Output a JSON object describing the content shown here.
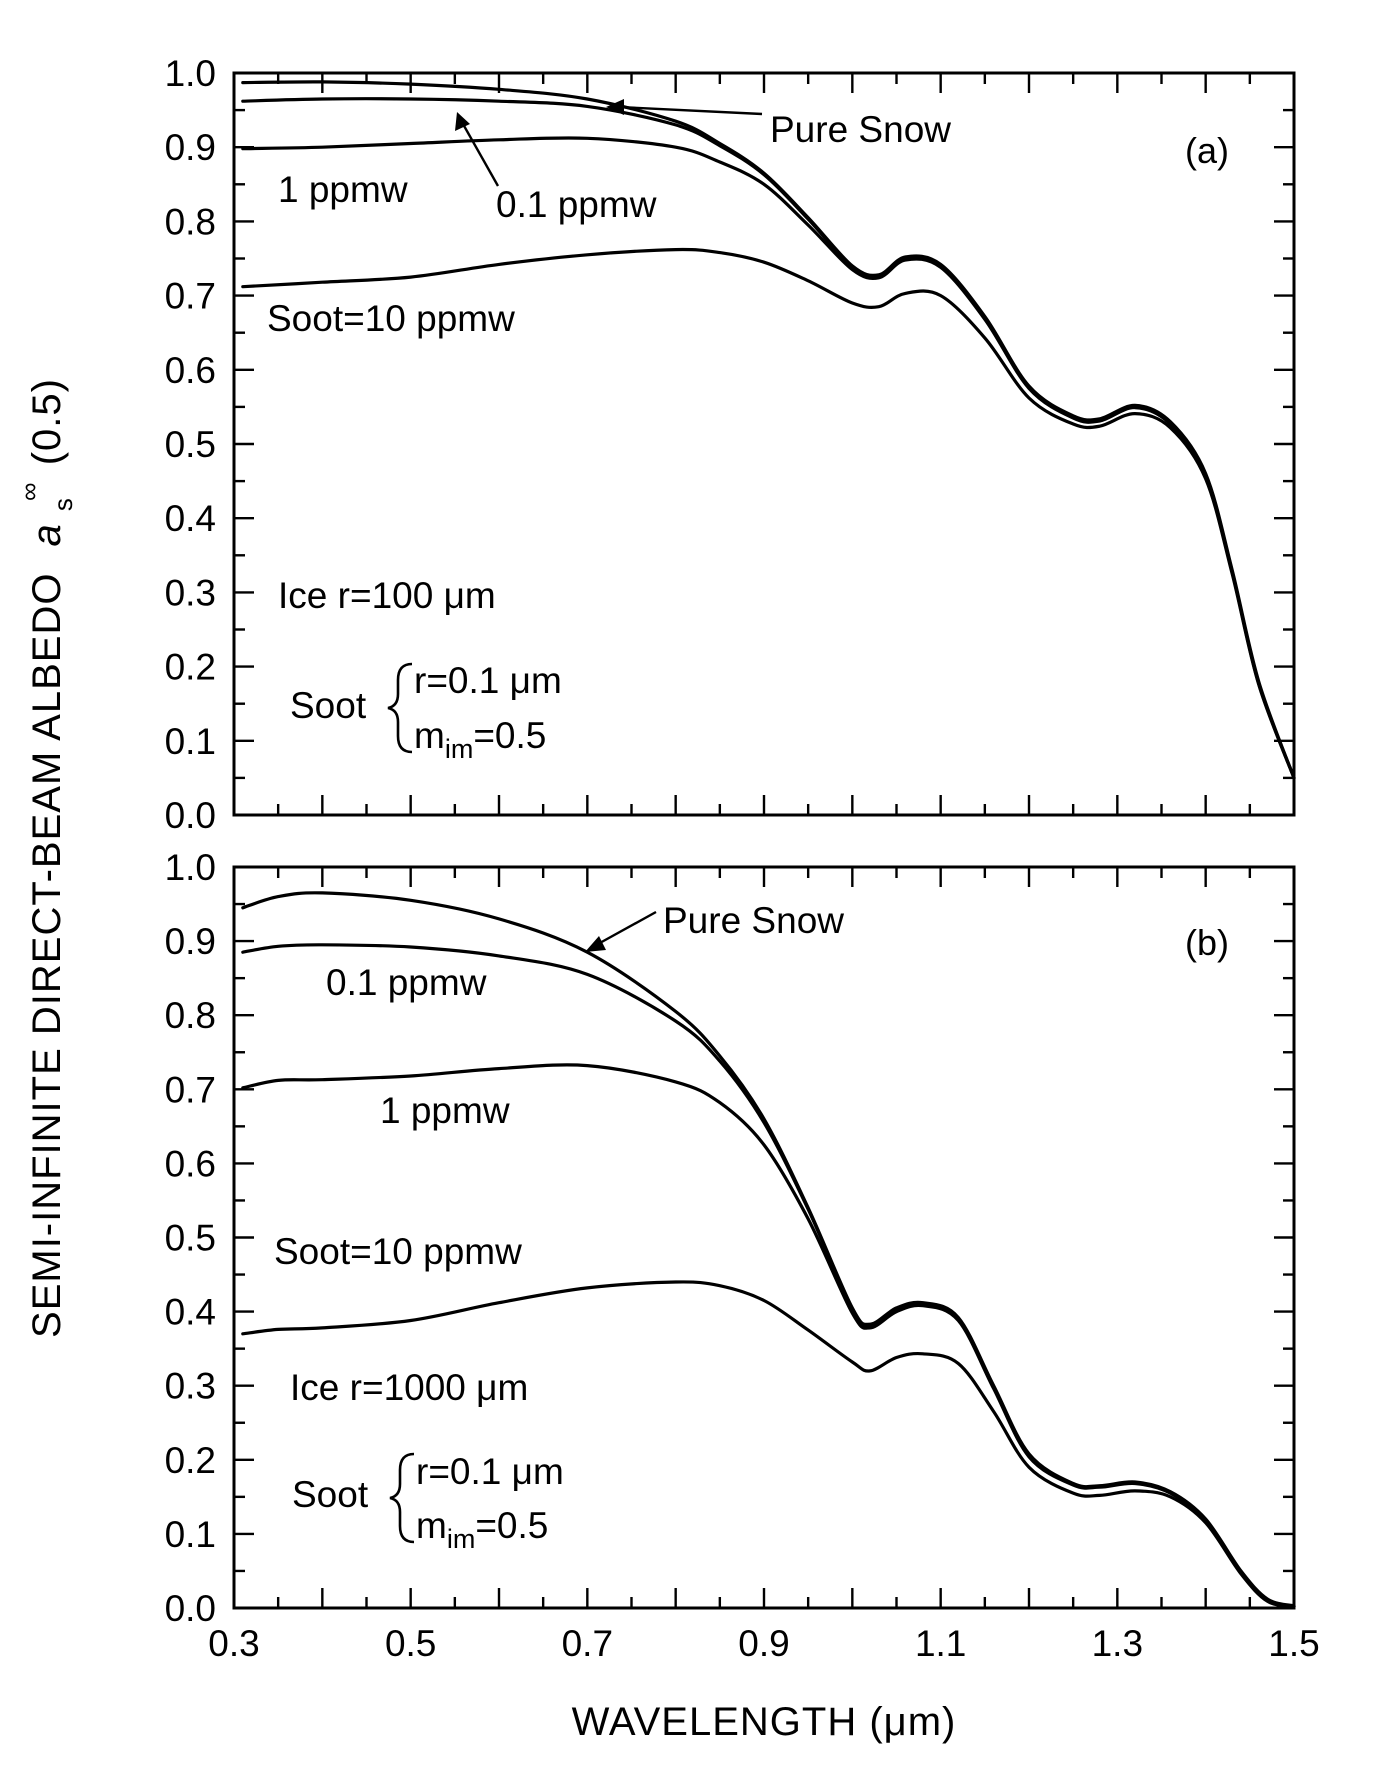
{
  "chart_data": [
    {
      "type": "line",
      "panel": "(a)",
      "ylabel": "SEMI-INFINITE DIRECT-BEAM ALBEDO",
      "ylabel_symbol": "a",
      "ylabel_sub": "s",
      "ylabel_sup": "∞",
      "ylabel_arg": "(0.5)",
      "xlim": [
        0.3,
        1.5
      ],
      "ylim": [
        0.0,
        1.0
      ],
      "yticks": [
        "0.0",
        "0.1",
        "0.2",
        "0.3",
        "0.4",
        "0.5",
        "0.6",
        "0.7",
        "0.8",
        "0.9",
        "1.0"
      ],
      "series": [
        {
          "name": "Pure Snow",
          "color": "#000000",
          "x": [
            0.31,
            0.4,
            0.5,
            0.6,
            0.7,
            0.8,
            0.85,
            0.9,
            0.95,
            1.0,
            1.03,
            1.06,
            1.1,
            1.15,
            1.2,
            1.25,
            1.28,
            1.32,
            1.36,
            1.4,
            1.43,
            1.46,
            1.5
          ],
          "y": [
            0.987,
            0.988,
            0.985,
            0.978,
            0.965,
            0.935,
            0.905,
            0.865,
            0.805,
            0.74,
            0.728,
            0.752,
            0.742,
            0.672,
            0.578,
            0.538,
            0.534,
            0.552,
            0.53,
            0.46,
            0.33,
            0.18,
            0.05
          ]
        },
        {
          "name": "0.1 ppmw",
          "color": "#000000",
          "x": [
            0.31,
            0.4,
            0.5,
            0.6,
            0.7,
            0.8,
            0.85,
            0.9,
            0.95,
            1.0,
            1.03,
            1.06,
            1.1,
            1.15,
            1.2,
            1.25,
            1.28,
            1.32,
            1.36,
            1.4,
            1.43,
            1.46,
            1.5
          ],
          "y": [
            0.962,
            0.965,
            0.965,
            0.962,
            0.955,
            0.93,
            0.902,
            0.863,
            0.803,
            0.738,
            0.726,
            0.75,
            0.74,
            0.67,
            0.576,
            0.536,
            0.532,
            0.55,
            0.528,
            0.458,
            0.328,
            0.178,
            0.05
          ]
        },
        {
          "name": "1 ppmw",
          "color": "#000000",
          "x": [
            0.31,
            0.4,
            0.5,
            0.6,
            0.7,
            0.8,
            0.85,
            0.9,
            0.95,
            1.0,
            1.03,
            1.06,
            1.1,
            1.15,
            1.2,
            1.25,
            1.28,
            1.32,
            1.36,
            1.4,
            1.43,
            1.46,
            1.5
          ],
          "y": [
            0.898,
            0.9,
            0.905,
            0.91,
            0.912,
            0.9,
            0.88,
            0.85,
            0.795,
            0.735,
            0.724,
            0.748,
            0.738,
            0.668,
            0.575,
            0.535,
            0.531,
            0.549,
            0.527,
            0.457,
            0.327,
            0.177,
            0.05
          ]
        },
        {
          "name": "Soot=10 ppmw",
          "color": "#000000",
          "x": [
            0.31,
            0.4,
            0.5,
            0.6,
            0.7,
            0.8,
            0.85,
            0.9,
            0.95,
            1.0,
            1.03,
            1.06,
            1.1,
            1.15,
            1.2,
            1.25,
            1.28,
            1.32,
            1.36,
            1.4,
            1.43,
            1.46,
            1.5
          ],
          "y": [
            0.712,
            0.718,
            0.725,
            0.742,
            0.755,
            0.762,
            0.758,
            0.745,
            0.72,
            0.69,
            0.685,
            0.703,
            0.7,
            0.643,
            0.562,
            0.527,
            0.524,
            0.541,
            0.522,
            0.453,
            0.325,
            0.176,
            0.05
          ]
        }
      ],
      "annotations": {
        "pure_snow": "Pure Snow",
        "ppmw_01": "0.1 ppmw",
        "ppmw_1": "1 ppmw",
        "soot_10": "Soot=10 ppmw",
        "ice": "Ice r=100 μm",
        "soot_word": "Soot",
        "soot_r": "r=0.1 μm",
        "soot_m_base": "m",
        "soot_m_sub": "im",
        "soot_m_val": "=0.5"
      }
    },
    {
      "type": "line",
      "panel": "(b)",
      "xlabel": "WAVELENGTH (μm)",
      "xlim": [
        0.3,
        1.5
      ],
      "ylim": [
        0.0,
        1.0
      ],
      "xticks": [
        "0.3",
        "0.5",
        "0.7",
        "0.9",
        "1.1",
        "1.3",
        "1.5"
      ],
      "yticks": [
        "0.0",
        "0.1",
        "0.2",
        "0.3",
        "0.4",
        "0.5",
        "0.6",
        "0.7",
        "0.8",
        "0.9",
        "1.0"
      ],
      "series": [
        {
          "name": "Pure Snow",
          "color": "#000000",
          "x": [
            0.31,
            0.35,
            0.4,
            0.5,
            0.6,
            0.7,
            0.8,
            0.85,
            0.9,
            0.95,
            1.0,
            1.02,
            1.05,
            1.08,
            1.12,
            1.16,
            1.2,
            1.25,
            1.28,
            1.32,
            1.36,
            1.4,
            1.44,
            1.47,
            1.5
          ],
          "y": [
            0.945,
            0.96,
            0.965,
            0.955,
            0.93,
            0.885,
            0.805,
            0.745,
            0.66,
            0.54,
            0.405,
            0.383,
            0.405,
            0.412,
            0.392,
            0.3,
            0.208,
            0.168,
            0.165,
            0.17,
            0.157,
            0.12,
            0.05,
            0.012,
            0.003
          ]
        },
        {
          "name": "0.1 ppmw",
          "color": "#000000",
          "x": [
            0.31,
            0.35,
            0.4,
            0.5,
            0.6,
            0.7,
            0.8,
            0.85,
            0.9,
            0.95,
            1.0,
            1.02,
            1.05,
            1.08,
            1.12,
            1.16,
            1.2,
            1.25,
            1.28,
            1.32,
            1.36,
            1.4,
            1.44,
            1.47,
            1.5
          ],
          "y": [
            0.885,
            0.893,
            0.895,
            0.892,
            0.88,
            0.855,
            0.792,
            0.738,
            0.655,
            0.538,
            0.403,
            0.381,
            0.403,
            0.41,
            0.39,
            0.298,
            0.206,
            0.167,
            0.164,
            0.169,
            0.156,
            0.119,
            0.049,
            0.011,
            0.002
          ]
        },
        {
          "name": "1 ppmw",
          "color": "#000000",
          "x": [
            0.31,
            0.35,
            0.4,
            0.5,
            0.6,
            0.7,
            0.8,
            0.85,
            0.9,
            0.95,
            1.0,
            1.02,
            1.05,
            1.08,
            1.12,
            1.16,
            1.2,
            1.25,
            1.28,
            1.32,
            1.36,
            1.4,
            1.44,
            1.47,
            1.5
          ],
          "y": [
            0.702,
            0.712,
            0.713,
            0.718,
            0.728,
            0.732,
            0.71,
            0.682,
            0.625,
            0.525,
            0.398,
            0.378,
            0.4,
            0.408,
            0.388,
            0.296,
            0.204,
            0.166,
            0.163,
            0.168,
            0.155,
            0.118,
            0.048,
            0.01,
            0.002
          ]
        },
        {
          "name": "Soot=10 ppmw",
          "color": "#000000",
          "x": [
            0.31,
            0.35,
            0.4,
            0.5,
            0.6,
            0.7,
            0.8,
            0.85,
            0.9,
            0.95,
            1.0,
            1.02,
            1.05,
            1.08,
            1.12,
            1.16,
            1.2,
            1.25,
            1.28,
            1.32,
            1.36,
            1.4,
            1.44,
            1.47,
            1.5
          ],
          "y": [
            0.37,
            0.376,
            0.378,
            0.388,
            0.412,
            0.432,
            0.44,
            0.435,
            0.415,
            0.375,
            0.332,
            0.32,
            0.338,
            0.343,
            0.33,
            0.265,
            0.19,
            0.155,
            0.152,
            0.158,
            0.15,
            0.115,
            0.046,
            0.009,
            0.002
          ]
        }
      ],
      "annotations": {
        "pure_snow": "Pure Snow",
        "ppmw_01": "0.1 ppmw",
        "ppmw_1": "1 ppmw",
        "soot_10": "Soot=10 ppmw",
        "ice": "Ice r=1000 μm",
        "soot_word": "Soot",
        "soot_r": "r=0.1 μm",
        "soot_m_base": "m",
        "soot_m_sub": "im",
        "soot_m_val": "=0.5"
      }
    }
  ]
}
